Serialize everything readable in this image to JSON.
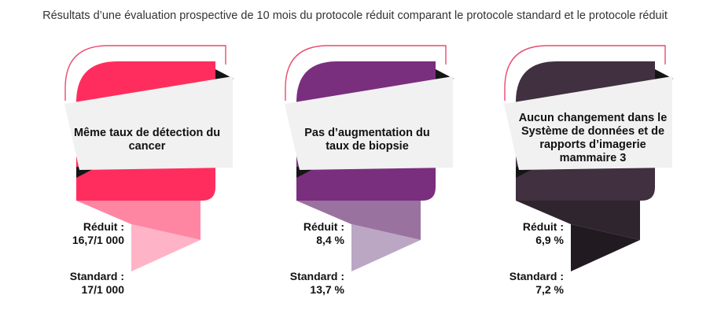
{
  "title": "Résultats d’une évaluation prospective de 10 mois du protocole réduit comparant le protocole standard et le protocole réduit",
  "panels": [
    {
      "heading": "Même taux de détection du cancer",
      "reduced_label": "Réduit :",
      "reduced_value": "16,7/1 000",
      "standard_label": "Standard :",
      "standard_value": "17/1 000",
      "colors": {
        "card": "#ff2d5e",
        "ribbon_mid": "#ff86a2",
        "ribbon_low": "#ffb3c6",
        "outline": "#e94b6e"
      }
    },
    {
      "heading": "Pas d’augmentation du taux de biopsie",
      "reduced_label": "Réduit :",
      "reduced_value": "8,4 %",
      "standard_label": "Standard :",
      "standard_value": "13,7 %",
      "colors": {
        "card": "#7a2e7e",
        "ribbon_mid": "#9a72a0",
        "ribbon_low": "#bba6c4",
        "outline": "#e94b6e"
      }
    },
    {
      "heading": "Aucun changement dans le Système de données et de rapports d’imagerie mammaire 3",
      "reduced_label": "Réduit :",
      "reduced_value": "6,9 %",
      "standard_label": "Standard :",
      "standard_value": "7,2 %",
      "colors": {
        "card": "#41303f",
        "ribbon_mid": "#2f252e",
        "ribbon_low": "#221a21",
        "outline": "#e94b6e"
      }
    }
  ]
}
